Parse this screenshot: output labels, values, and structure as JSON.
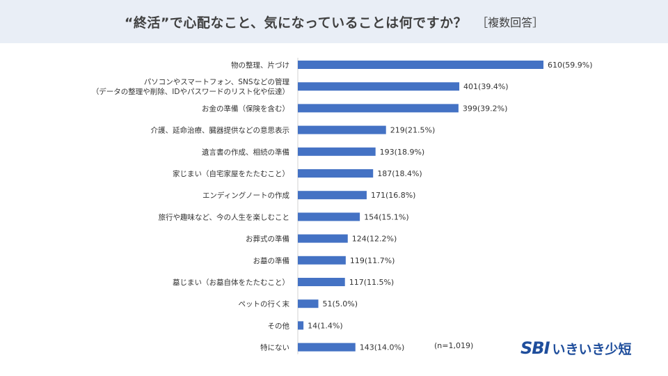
{
  "header": {
    "title": "“終活”で心配なこと、気になっていることは何ですか？",
    "subtitle": "［複数回答］"
  },
  "note": "(n=1,019)",
  "logo": {
    "sbi": "SBI",
    "name": "いきいき少短"
  },
  "colors": {
    "bar": "#4472c4",
    "header_bg": "#e9eef6",
    "logo": "#1f4e9c"
  },
  "chart_data": {
    "type": "bar",
    "orientation": "horizontal",
    "categories": [
      [
        "物の整理、片づけ"
      ],
      [
        "パソコンやスマートフォン、SNSなどの管理",
        "（データの整理や削除、IDやパスワードのリスト化や伝達）"
      ],
      [
        "お金の準備（保険を含む）"
      ],
      [
        "介護、延命治療、臓器提供などの意思表示"
      ],
      [
        "遺言書の作成、相続の準備"
      ],
      [
        "家じまい（自宅家屋をたたむこと）"
      ],
      [
        "エンディングノートの作成"
      ],
      [
        "旅行や趣味など、今の人生を楽しむこと"
      ],
      [
        "お葬式の準備"
      ],
      [
        "お墓の準備"
      ],
      [
        "墓じまい（お墓自体をたたむこと）"
      ],
      [
        "ペットの行く末"
      ],
      [
        "その他"
      ],
      [
        "特にない"
      ]
    ],
    "values": [
      610,
      401,
      399,
      219,
      193,
      187,
      171,
      154,
      124,
      119,
      117,
      51,
      14,
      143
    ],
    "labels": [
      "610(59.9%)",
      "401(39.4%)",
      "399(39.2%)",
      "219(21.5%)",
      "193(18.9%)",
      "187(18.4%)",
      "171(16.8%)",
      "154(15.1%)",
      "124(12.2%)",
      "119(11.7%)",
      "117(11.5%)",
      "51(5.0%)",
      "14(1.4%)",
      "143(14.0%)"
    ],
    "xlim": [
      0,
      610
    ],
    "grid": false,
    "legend": "none"
  }
}
